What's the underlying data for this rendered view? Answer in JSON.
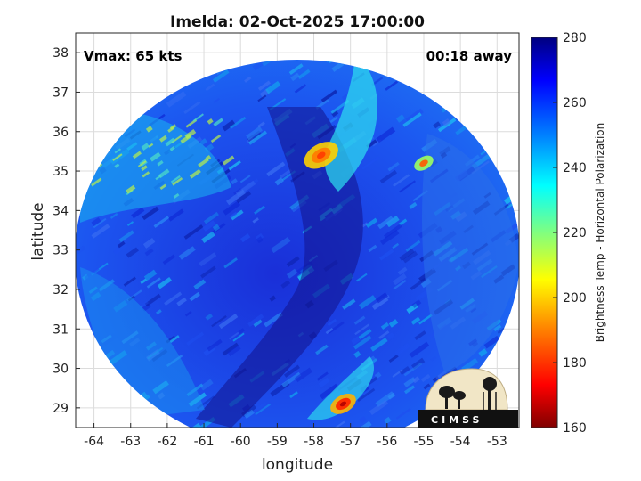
{
  "title": "Imelda: 02-Oct-2025 17:00:00",
  "vmax": "Vmax: 65 kts",
  "time_away": "00:18 away",
  "logo_text": "CIMSS",
  "axes": {
    "xlabel": "longitude",
    "ylabel": "latitude",
    "x_ticks": [
      "-64",
      "-63",
      "-62",
      "-61",
      "-60",
      "-59",
      "-58",
      "-57",
      "-56",
      "-55",
      "-54",
      "-53"
    ],
    "y_ticks": [
      "29",
      "30",
      "31",
      "32",
      "33",
      "34",
      "35",
      "36",
      "37",
      "38"
    ]
  },
  "colorbar": {
    "label": "Brightness Temp - Horizontal Polarization",
    "ticks": [
      "280",
      "260",
      "240",
      "220",
      "200",
      "180",
      "160"
    ],
    "range": [
      160,
      280
    ],
    "colormap": [
      "#800000",
      "#ff0000",
      "#ff8000",
      "#ffff00",
      "#80ff80",
      "#00ffff",
      "#0080ff",
      "#0000ff",
      "#000080"
    ]
  },
  "map_data": {
    "type": "microwave_brightness_temperature_swath",
    "lon_range": [
      -64.5,
      -52.4
    ],
    "lat_range": [
      28.5,
      38.5
    ],
    "center_lon": -58.5,
    "center_lat": 33.0,
    "features": [
      {
        "name": "cold_band_north",
        "lon": -57.8,
        "lat": 35.4
      },
      {
        "name": "cold_cell_east",
        "lon": -55.0,
        "lat": 35.2
      },
      {
        "name": "cold_cell_south",
        "lon": -57.2,
        "lat": 29.1
      }
    ]
  }
}
